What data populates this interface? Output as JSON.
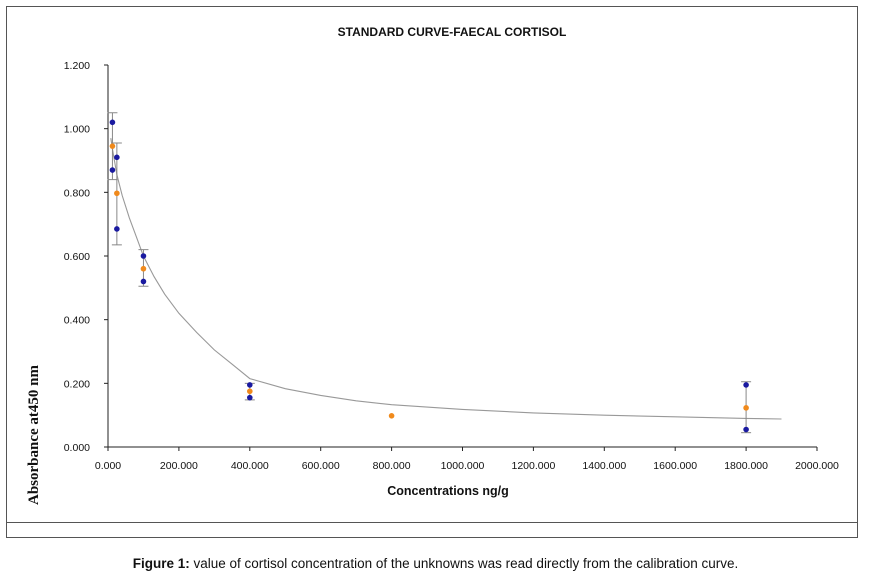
{
  "chart_data": {
    "type": "scatter",
    "title": "STANDARD CURVE-FAECAL CORTISOL",
    "xlabel": "Concentrations ng/g",
    "ylabel": "Absorbance at450 nm",
    "xlim": [
      0,
      2000
    ],
    "ylim": [
      0,
      1.2
    ],
    "x_ticks": [
      "0.000",
      "200.000",
      "400.000",
      "600.000",
      "800.000",
      "1000.000",
      "1200.000",
      "1400.000",
      "1600.000",
      "1800.000",
      "2000.000"
    ],
    "y_ticks": [
      "0.000",
      "0.200",
      "0.400",
      "0.600",
      "0.800",
      "1.000",
      "1.200"
    ],
    "grid": false,
    "legend": "none",
    "series": [
      {
        "color": "#1a1aa0",
        "points": [
          {
            "x": 12.5,
            "y": 1.02
          },
          {
            "x": 12.5,
            "y": 0.87
          },
          {
            "x": 25,
            "y": 0.91
          },
          {
            "x": 25,
            "y": 0.685
          },
          {
            "x": 100,
            "y": 0.6
          },
          {
            "x": 100,
            "y": 0.52
          },
          {
            "x": 400,
            "y": 0.195
          },
          {
            "x": 400,
            "y": 0.155
          },
          {
            "x": 1800,
            "y": 0.195
          },
          {
            "x": 1800,
            "y": 0.055
          }
        ]
      },
      {
        "color": "#f08a1c",
        "points": [
          {
            "x": 12.5,
            "y": 0.945
          },
          {
            "x": 25,
            "y": 0.797
          },
          {
            "x": 100,
            "y": 0.56
          },
          {
            "x": 400,
            "y": 0.175
          },
          {
            "x": 800,
            "y": 0.098
          },
          {
            "x": 1800,
            "y": 0.123
          }
        ]
      }
    ],
    "error_bars": [
      {
        "x": 12.5,
        "low": 0.84,
        "high": 1.05
      },
      {
        "x": 25,
        "low": 0.635,
        "high": 0.955
      },
      {
        "x": 100,
        "low": 0.505,
        "high": 0.62
      },
      {
        "x": 400,
        "low": 0.148,
        "high": 0.2
      },
      {
        "x": 1800,
        "low": 0.045,
        "high": 0.205
      }
    ],
    "fit_curve": {
      "color": "#999999",
      "points": [
        [
          8,
          0.97
        ],
        [
          15,
          0.92
        ],
        [
          25,
          0.855
        ],
        [
          40,
          0.79
        ],
        [
          60,
          0.72
        ],
        [
          80,
          0.66
        ],
        [
          100,
          0.6
        ],
        [
          130,
          0.535
        ],
        [
          160,
          0.48
        ],
        [
          200,
          0.42
        ],
        [
          250,
          0.36
        ],
        [
          300,
          0.305
        ],
        [
          350,
          0.26
        ],
        [
          400,
          0.215
        ],
        [
          500,
          0.183
        ],
        [
          600,
          0.162
        ],
        [
          700,
          0.145
        ],
        [
          800,
          0.133
        ],
        [
          1000,
          0.118
        ],
        [
          1200,
          0.107
        ],
        [
          1400,
          0.1
        ],
        [
          1600,
          0.095
        ],
        [
          1800,
          0.09
        ],
        [
          1900,
          0.088
        ]
      ]
    }
  },
  "caption": {
    "lead": "Figure 1:",
    "text": " value of cortisol concentration of the unknowns was read directly from the calibration curve."
  }
}
